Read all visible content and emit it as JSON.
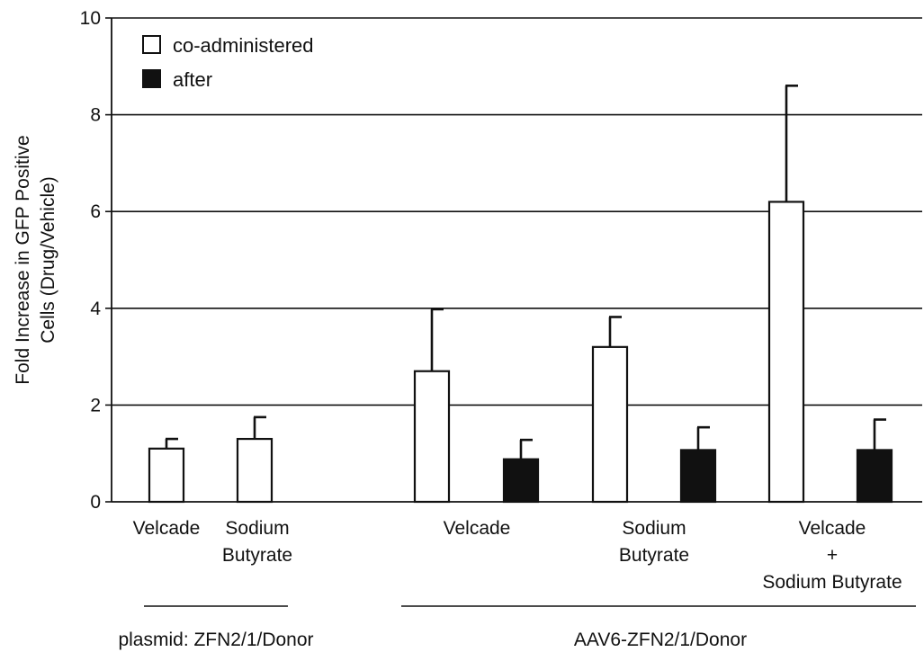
{
  "chart_data": {
    "type": "bar",
    "title": "",
    "ylabel_lines": [
      "Fold Increase in  GFP Positive",
      "Cells (Drug/Vehicle)"
    ],
    "ylim": [
      0,
      10
    ],
    "yticks": [
      0,
      2,
      4,
      6,
      8,
      10
    ],
    "grid": true,
    "legend_position": "top-left",
    "legend_layout": "vertical",
    "series": [
      {
        "name": "co-administered",
        "color": "#ffffff",
        "values": [
          1.1,
          1.3,
          2.7,
          3.2,
          6.2
        ],
        "errors": [
          0.2,
          0.45,
          1.28,
          0.62,
          2.4
        ]
      },
      {
        "name": "after",
        "color": "#111111",
        "values": [
          null,
          null,
          0.88,
          1.07,
          1.07
        ],
        "errors": [
          null,
          null,
          0.4,
          0.47,
          0.63
        ]
      }
    ],
    "categories": [
      {
        "lines": [
          "Velcade"
        ]
      },
      {
        "lines": [
          "Sodium",
          "Butyrate"
        ]
      },
      {
        "lines": [
          "Velcade"
        ]
      },
      {
        "lines": [
          "Sodium",
          "Butyrate"
        ]
      },
      {
        "lines": [
          "Velcade",
          "+",
          "Sodium Butyrate"
        ]
      }
    ],
    "groups": [
      {
        "label": "plasmid: ZFN2/1/Donor",
        "categories": [
          0,
          1
        ]
      },
      {
        "label": "AAV6-ZFN2/1/Donor",
        "categories": [
          2,
          3,
          4
        ]
      }
    ]
  }
}
